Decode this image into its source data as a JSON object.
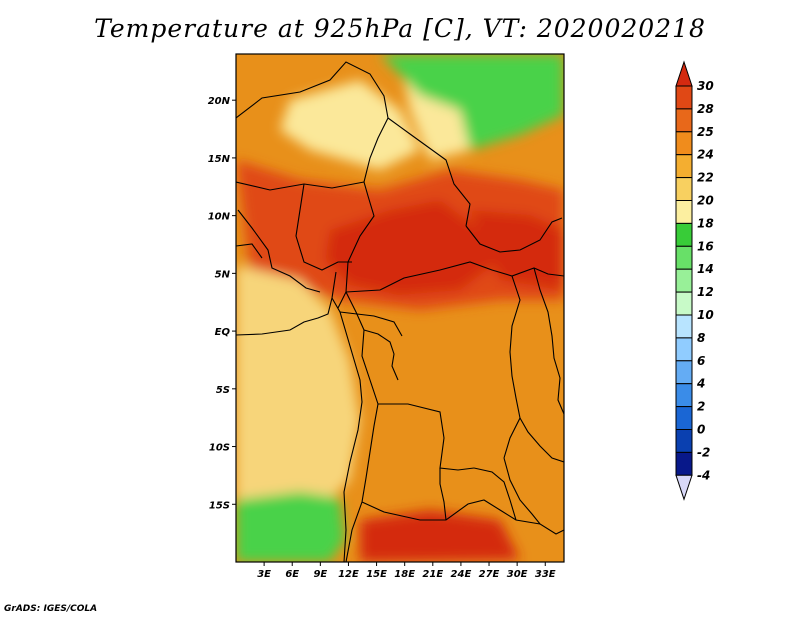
{
  "title": "Temperature at 925hPa [C], VT: 2020020218",
  "credit": "GrADS: IGES/COLA",
  "map": {
    "lon_labels": [
      "3E",
      "6E",
      "9E",
      "12E",
      "15E",
      "18E",
      "21E",
      "24E",
      "27E",
      "30E",
      "33E"
    ],
    "lat_labels": [
      "20N",
      "15N",
      "10N",
      "5N",
      "EQ",
      "5S",
      "10S",
      "15S"
    ],
    "lon_range": [
      0,
      35
    ],
    "lat_range": [
      -20,
      24
    ],
    "background_color": "#e8901a",
    "regions": [
      {
        "name": "warm-core-central",
        "color": "#d42a10"
      },
      {
        "name": "hot-band-north",
        "color": "#e04815"
      },
      {
        "name": "cool-atlantic",
        "color": "#f7d57a"
      },
      {
        "name": "sahara-cool",
        "color": "#fbe89a"
      },
      {
        "name": "green-northeast",
        "color": "#4ad24a"
      },
      {
        "name": "green-southwest",
        "color": "#4ad24a"
      }
    ]
  },
  "legend": {
    "type": "colorbar",
    "levels": [
      "30",
      "28",
      "25",
      "24",
      "22",
      "20",
      "18",
      "16",
      "14",
      "12",
      "10",
      "8",
      "6",
      "4",
      "2",
      "0",
      "-2",
      "-4"
    ],
    "colors": [
      "#d42a10",
      "#e04815",
      "#e8681a",
      "#f08c1c",
      "#f4ae30",
      "#f8d060",
      "#fcefa0",
      "#38cc38",
      "#68e068",
      "#98f098",
      "#c8fac8",
      "#b8e4ff",
      "#90ccff",
      "#64acf4",
      "#3a8ce8",
      "#1a66d4",
      "#0a40b0",
      "#08188a",
      "#d8d8f8"
    ]
  }
}
